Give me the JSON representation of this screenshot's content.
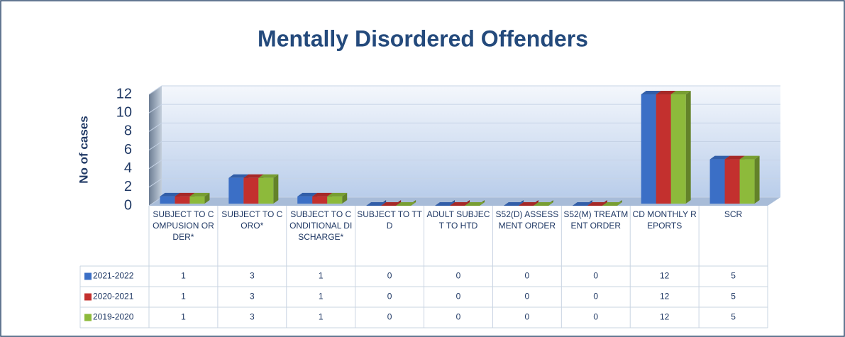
{
  "chart_data": {
    "type": "bar3d",
    "title": "Mentally Disordered Offenders",
    "y_label": "No of cases",
    "categories": [
      "SUBJECT TO COMPUSION ORDER*",
      "SUBJECT TO CORO*",
      "SUBJECT TO CONDITIONAL DISCHARGE*",
      "SUBJECT TO TTD",
      "ADULT SUBJECT TO HTD",
      "S52(D) ASSESSMENT ORDER",
      "S52(M) TREATMENT ORDER",
      "CD MONTHLY REPORTS",
      "SCR"
    ],
    "series": [
      {
        "name": "2021-2022",
        "color": "#3b6fc6",
        "values": [
          1,
          3,
          1,
          0,
          0,
          0,
          0,
          12,
          5
        ]
      },
      {
        "name": "2020-2021",
        "color": "#c3302e",
        "values": [
          1,
          3,
          1,
          0,
          0,
          0,
          0,
          12,
          5
        ]
      },
      {
        "name": "2019-2020",
        "color": "#8dba3b",
        "values": [
          1,
          3,
          1,
          0,
          0,
          0,
          0,
          12,
          5
        ]
      }
    ],
    "ylim": [
      0,
      12
    ],
    "yticks": [
      0,
      2,
      4,
      6,
      8,
      10,
      12
    ],
    "grid": true,
    "data_table": true
  }
}
